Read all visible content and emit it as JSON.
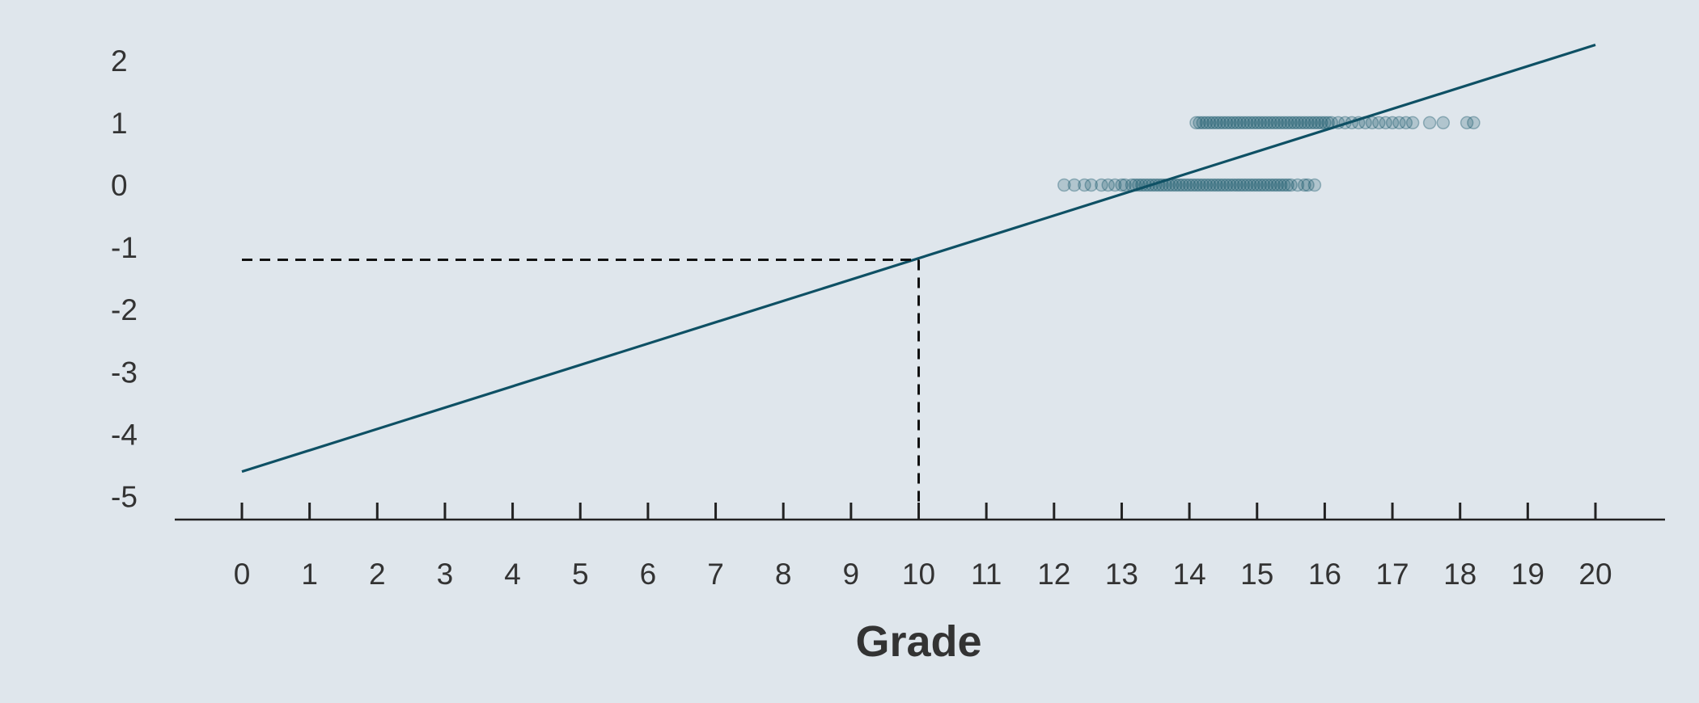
{
  "chart_data": {
    "type": "scatter",
    "title": "",
    "xlabel": "Grade",
    "ylabel": "",
    "xlim": [
      -1,
      21
    ],
    "ylim": [
      -5.3,
      2.35
    ],
    "x_ticks": [
      "0",
      "1",
      "2",
      "3",
      "4",
      "5",
      "6",
      "7",
      "8",
      "9",
      "10",
      "11",
      "12",
      "13",
      "14",
      "15",
      "16",
      "17",
      "18",
      "19",
      "20"
    ],
    "y_ticks": [
      "2",
      "1",
      "0",
      "-1",
      "-2",
      "-3",
      "-4",
      "-5"
    ],
    "grid": false,
    "legend": "none",
    "colors": {
      "background": "#dfe6ec",
      "series": "#0e5064",
      "axis": "#222222",
      "text": "#333333"
    },
    "series": [
      {
        "kind": "points",
        "y_value": 0,
        "x": [
          12.15,
          12.3,
          12.45,
          12.55,
          12.7,
          12.8,
          12.9,
          13.0,
          13.05,
          13.15,
          13.2,
          13.25,
          13.3,
          13.35,
          13.4,
          13.45,
          13.5,
          13.55,
          13.6,
          13.65,
          13.7,
          13.75,
          13.8,
          13.85,
          13.9,
          13.95,
          14.0,
          14.05,
          14.1,
          14.15,
          14.2,
          14.25,
          14.3,
          14.35,
          14.4,
          14.45,
          14.5,
          14.55,
          14.6,
          14.65,
          14.7,
          14.75,
          14.8,
          14.85,
          14.9,
          14.95,
          15.0,
          15.05,
          15.1,
          15.15,
          15.2,
          15.25,
          15.3,
          15.35,
          15.4,
          15.45,
          15.5,
          15.6,
          15.7,
          15.75,
          15.85
        ]
      },
      {
        "kind": "points",
        "y_value": 1,
        "x": [
          14.1,
          14.15,
          14.2,
          14.25,
          14.3,
          14.35,
          14.4,
          14.45,
          14.5,
          14.55,
          14.6,
          14.65,
          14.7,
          14.75,
          14.8,
          14.85,
          14.9,
          14.95,
          15.0,
          15.05,
          15.1,
          15.15,
          15.2,
          15.25,
          15.3,
          15.35,
          15.4,
          15.45,
          15.5,
          15.55,
          15.6,
          15.65,
          15.7,
          15.75,
          15.8,
          15.85,
          15.9,
          15.95,
          16.0,
          16.05,
          16.1,
          16.2,
          16.3,
          16.4,
          16.5,
          16.6,
          16.7,
          16.8,
          16.9,
          17.0,
          17.1,
          17.2,
          17.3,
          17.55,
          17.75,
          18.1,
          18.2
        ]
      },
      {
        "kind": "line",
        "x": [
          0,
          20
        ],
        "y": [
          -4.6,
          2.25
        ]
      },
      {
        "kind": "reference",
        "x": 10,
        "y": -1.2
      }
    ]
  }
}
